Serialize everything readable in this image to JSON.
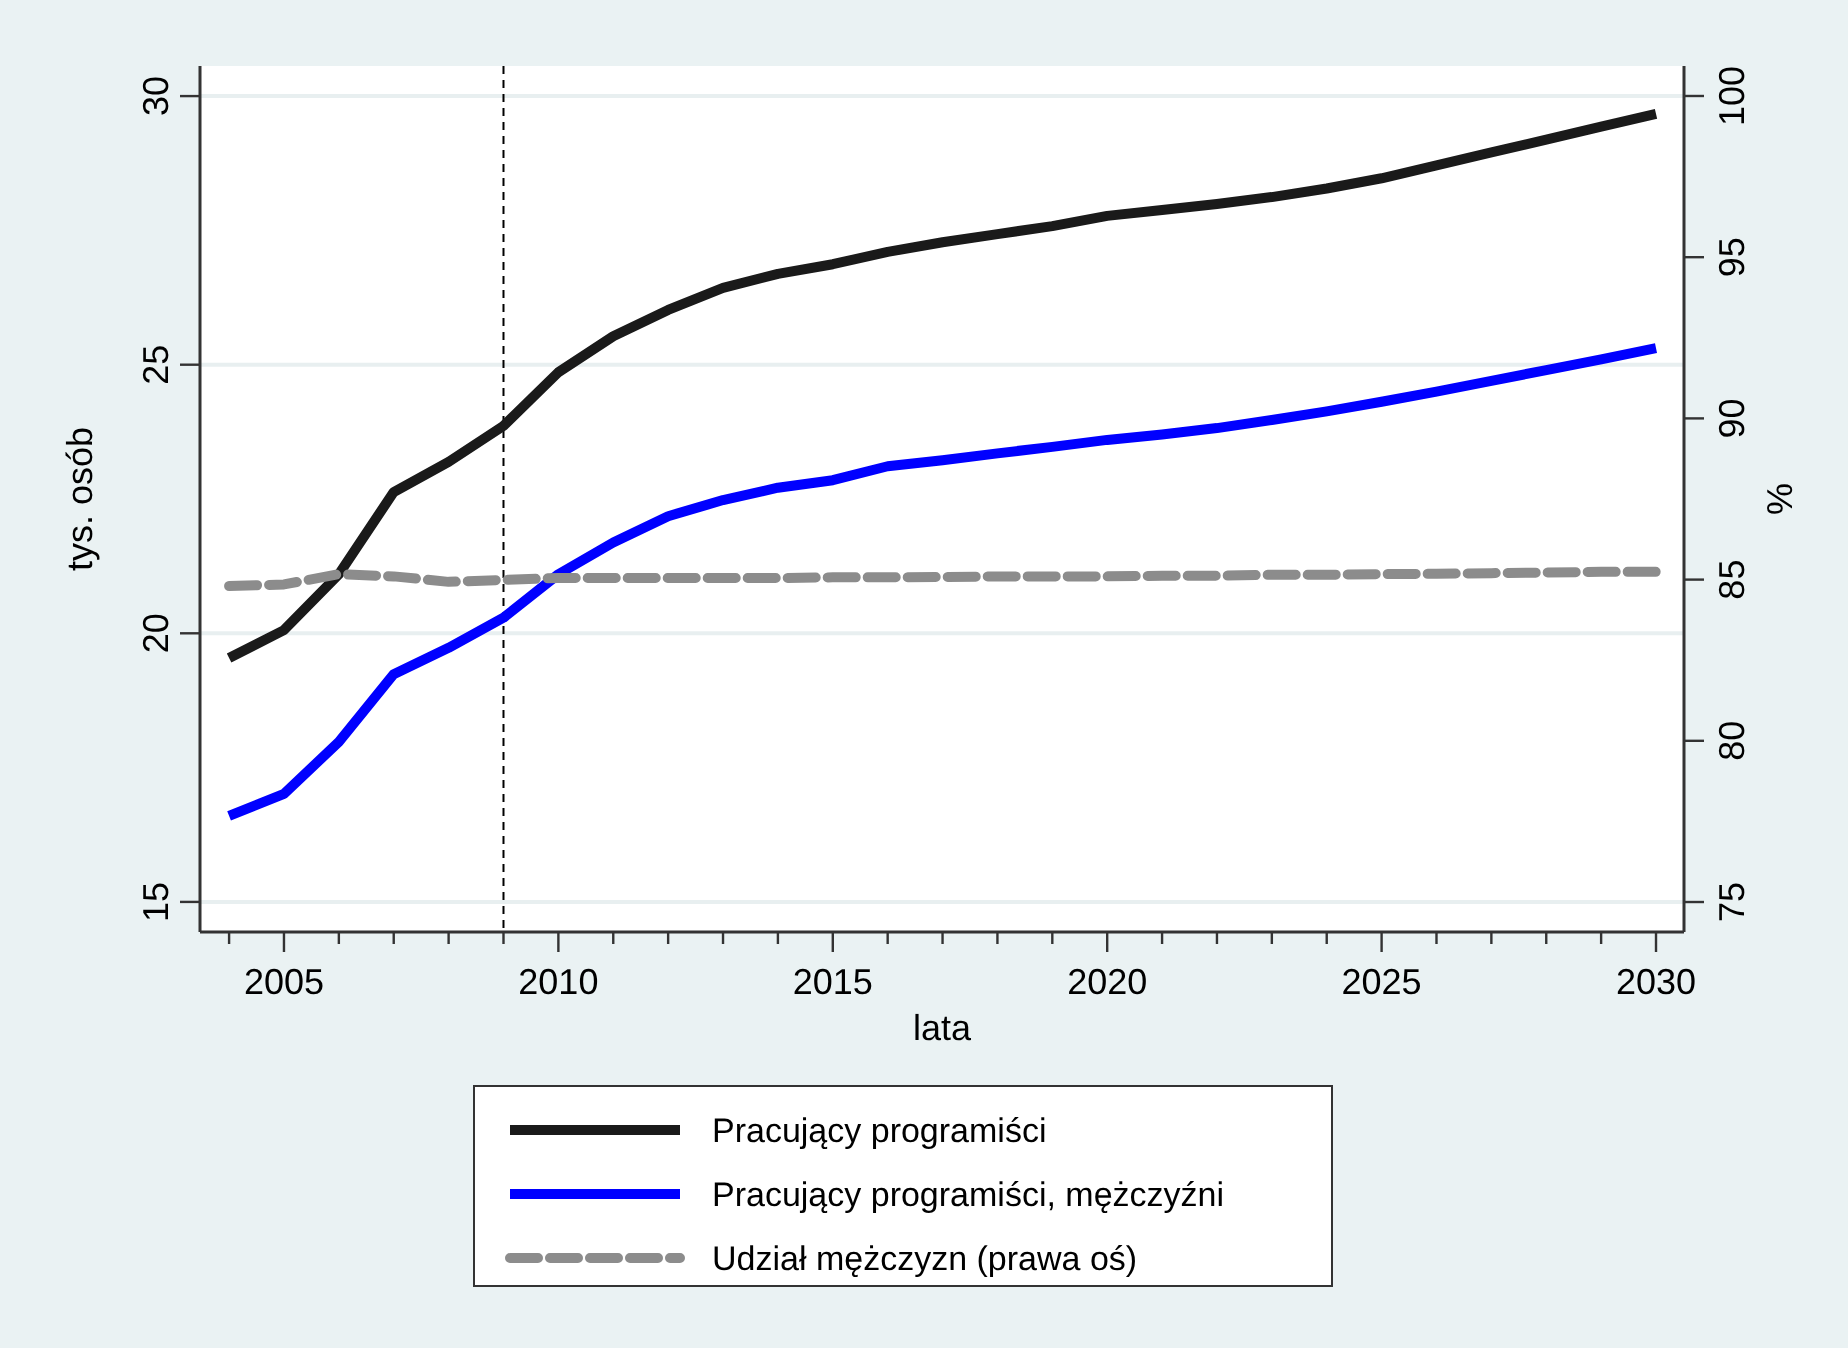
{
  "chart_data": {
    "type": "line",
    "xlabel": "lata",
    "ylabel": "tys. osób",
    "y2label": "%",
    "x": [
      2004,
      2005,
      2006,
      2007,
      2008,
      2009,
      2010,
      2011,
      2012,
      2013,
      2014,
      2015,
      2016,
      2017,
      2018,
      2019,
      2020,
      2021,
      2022,
      2023,
      2024,
      2025,
      2026,
      2027,
      2028,
      2029,
      2030
    ],
    "series": [
      {
        "name": "Pracujący programiści",
        "color": "#1a1a1a",
        "values": [
          19.54,
          20.06,
          21.1,
          22.63,
          23.19,
          23.86,
          24.86,
          25.53,
          26.02,
          26.43,
          26.69,
          26.87,
          27.1,
          27.28,
          27.43,
          27.58,
          27.77,
          27.88,
          27.99,
          28.12,
          28.28,
          28.47,
          28.71,
          28.95,
          29.19,
          29.43,
          29.67
        ]
      },
      {
        "name": "Pracujący programiści, mężczyźni",
        "color": "#0000ff",
        "values": [
          16.6,
          17.01,
          17.98,
          19.24,
          19.73,
          20.29,
          21.1,
          21.69,
          22.18,
          22.48,
          22.71,
          22.85,
          23.11,
          23.22,
          23.35,
          23.47,
          23.6,
          23.7,
          23.82,
          23.97,
          24.13,
          24.31,
          24.5,
          24.7,
          24.9,
          25.1,
          25.31
        ]
      },
      {
        "name": "Udział mężczyzn (prawa oś)",
        "color": "#8c8c8c",
        "axis": "y2",
        "line_style": "dashed",
        "values": [
          84.8,
          84.85,
          85.17,
          85.1,
          84.93,
          84.99,
          85.05,
          85.05,
          85.05,
          85.05,
          85.05,
          85.07,
          85.07,
          85.08,
          85.1,
          85.1,
          85.1,
          85.12,
          85.12,
          85.15,
          85.15,
          85.17,
          85.18,
          85.2,
          85.22,
          85.24,
          85.24
        ]
      }
    ],
    "xlim": [
      2003.47,
      2030.51
    ],
    "xticks": [
      {
        "value": 2004,
        "label": null
      },
      2005,
      {
        "value": 2006,
        "label": null
      },
      {
        "value": 2007,
        "label": null
      },
      {
        "value": 2008,
        "label": null
      },
      {
        "value": 2009,
        "label": null
      },
      2010,
      {
        "value": 2011,
        "label": null
      },
      {
        "value": 2012,
        "label": null
      },
      {
        "value": 2013,
        "label": null
      },
      {
        "value": 2014,
        "label": null
      },
      2015,
      {
        "value": 2016,
        "label": null
      },
      {
        "value": 2017,
        "label": null
      },
      {
        "value": 2018,
        "label": null
      },
      {
        "value": 2019,
        "label": null
      },
      2020,
      {
        "value": 2021,
        "label": null
      },
      {
        "value": 2022,
        "label": null
      },
      {
        "value": 2023,
        "label": null
      },
      {
        "value": 2024,
        "label": null
      },
      2025,
      {
        "value": 2026,
        "label": null
      },
      {
        "value": 2027,
        "label": null
      },
      {
        "value": 2028,
        "label": null
      },
      {
        "value": 2029,
        "label": null
      },
      2030
    ],
    "ylim": [
      14.44,
      30.56
    ],
    "yticks": [
      15,
      20,
      25,
      30
    ],
    "y2lim": [
      74.07,
      100.93
    ],
    "y2ticks": [
      75,
      80,
      85,
      90,
      95,
      100
    ],
    "ref_lines": [
      {
        "axis": "x",
        "value": 2009,
        "color": "#000000",
        "line_style": "dashed"
      }
    ],
    "grid": "y",
    "legend": "bottom",
    "line_style": "solid",
    "marker": "none"
  }
}
